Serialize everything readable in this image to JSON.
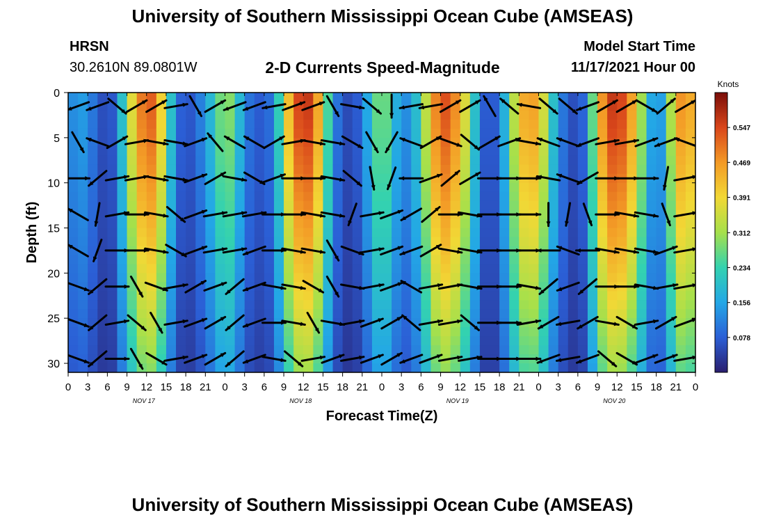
{
  "header": {
    "title": "University of Southern Mississippi Ocean Cube (AMSEAS)",
    "station": "HRSN",
    "coords": "30.2610N  89.0801W",
    "subtitle": "2-D Currents Speed-Magnitude",
    "model_label": "Model Start Time",
    "model_time": "11/17/2021 Hour 00"
  },
  "footer": {
    "title": "University of Southern Mississippi Ocean Cube (AMSEAS)"
  },
  "colors": {
    "colormap": [
      "#2a1e6e",
      "#2b5fd6",
      "#23a7e6",
      "#33d2b0",
      "#a6e04b",
      "#f2d835",
      "#f39a26",
      "#d9461b",
      "#7a0d08"
    ]
  },
  "chart_data": {
    "type": "heatmap",
    "xlabel": "Forecast Time(Z)",
    "ylabel": "Depth (ft)",
    "xlim": [
      0,
      96
    ],
    "ylim": [
      31,
      0
    ],
    "x_ticks": [
      0,
      3,
      6,
      9,
      12,
      15,
      18,
      21,
      24,
      27,
      30,
      33,
      36,
      39,
      42,
      45,
      48,
      51,
      54,
      57,
      60,
      63,
      66,
      69,
      72,
      75,
      78,
      81,
      84,
      87,
      90,
      93,
      96
    ],
    "x_tick_labels": [
      "0",
      "3",
      "6",
      "9",
      "12",
      "15",
      "18",
      "21",
      "0",
      "3",
      "6",
      "9",
      "12",
      "15",
      "18",
      "21",
      "0",
      "3",
      "6",
      "9",
      "12",
      "15",
      "18",
      "21",
      "0",
      "3",
      "6",
      "9",
      "12",
      "15",
      "18",
      "21",
      "0"
    ],
    "day_labels": [
      {
        "x": 12,
        "label": "NOV 17"
      },
      {
        "x": 36,
        "label": "NOV 18"
      },
      {
        "x": 60,
        "label": "NOV 19"
      },
      {
        "x": 84,
        "label": "NOV 20"
      }
    ],
    "y_ticks": [
      0,
      5,
      10,
      15,
      20,
      25,
      30
    ],
    "colorbar": {
      "unit": "Knots",
      "min": 0.0,
      "max": 0.625,
      "tick_values": [
        0.547,
        0.469,
        0.391,
        0.312,
        0.234,
        0.156,
        0.078
      ],
      "tick_labels": [
        "0.547",
        "0.469",
        "0.391",
        "0.312",
        "0.234",
        "0.156",
        "0.078"
      ]
    },
    "speed_profile_by_hour": [
      {
        "x": 0,
        "v": 0.1
      },
      {
        "x": 1.5,
        "v": 0.16
      },
      {
        "x": 3,
        "v": 0.13
      },
      {
        "x": 4.5,
        "v": 0.08
      },
      {
        "x": 6,
        "v": 0.04
      },
      {
        "x": 7.5,
        "v": 0.1
      },
      {
        "x": 9,
        "v": 0.3
      },
      {
        "x": 10.5,
        "v": 0.45
      },
      {
        "x": 12,
        "v": 0.55
      },
      {
        "x": 13.5,
        "v": 0.5
      },
      {
        "x": 15,
        "v": 0.3
      },
      {
        "x": 16.5,
        "v": 0.1
      },
      {
        "x": 18,
        "v": 0.06
      },
      {
        "x": 19.5,
        "v": 0.08
      },
      {
        "x": 21,
        "v": 0.15
      },
      {
        "x": 22.5,
        "v": 0.22
      },
      {
        "x": 24,
        "v": 0.33
      },
      {
        "x": 25.5,
        "v": 0.25
      },
      {
        "x": 27,
        "v": 0.12
      },
      {
        "x": 28.5,
        "v": 0.08
      },
      {
        "x": 30,
        "v": 0.07
      },
      {
        "x": 31.5,
        "v": 0.12
      },
      {
        "x": 33,
        "v": 0.33
      },
      {
        "x": 34.5,
        "v": 0.52
      },
      {
        "x": 36,
        "v": 0.58
      },
      {
        "x": 37.5,
        "v": 0.55
      },
      {
        "x": 39,
        "v": 0.36
      },
      {
        "x": 40.5,
        "v": 0.14
      },
      {
        "x": 42,
        "v": 0.06
      },
      {
        "x": 43.5,
        "v": 0.05
      },
      {
        "x": 45,
        "v": 0.1
      },
      {
        "x": 46.5,
        "v": 0.22
      },
      {
        "x": 48,
        "v": 0.32
      },
      {
        "x": 49.5,
        "v": 0.22
      },
      {
        "x": 51,
        "v": 0.12
      },
      {
        "x": 52.5,
        "v": 0.14
      },
      {
        "x": 54,
        "v": 0.25
      },
      {
        "x": 55.5,
        "v": 0.43
      },
      {
        "x": 57,
        "v": 0.55
      },
      {
        "x": 58.5,
        "v": 0.53
      },
      {
        "x": 60,
        "v": 0.44
      },
      {
        "x": 61.5,
        "v": 0.3
      },
      {
        "x": 63,
        "v": 0.1
      },
      {
        "x": 64.5,
        "v": 0.05
      },
      {
        "x": 66,
        "v": 0.1
      },
      {
        "x": 67.5,
        "v": 0.25
      },
      {
        "x": 69,
        "v": 0.42
      },
      {
        "x": 70.5,
        "v": 0.48
      },
      {
        "x": 72,
        "v": 0.44
      },
      {
        "x": 73.5,
        "v": 0.28
      },
      {
        "x": 75,
        "v": 0.12
      },
      {
        "x": 76.5,
        "v": 0.09
      },
      {
        "x": 78,
        "v": 0.03
      },
      {
        "x": 79.5,
        "v": 0.14
      },
      {
        "x": 81,
        "v": 0.4
      },
      {
        "x": 82.5,
        "v": 0.55
      },
      {
        "x": 84,
        "v": 0.58
      },
      {
        "x": 85.5,
        "v": 0.52
      },
      {
        "x": 87,
        "v": 0.4
      },
      {
        "x": 88.5,
        "v": 0.22
      },
      {
        "x": 90,
        "v": 0.1
      },
      {
        "x": 91.5,
        "v": 0.2
      },
      {
        "x": 93,
        "v": 0.45
      },
      {
        "x": 94.5,
        "v": 0.5
      },
      {
        "x": 96,
        "v": 0.4
      }
    ],
    "vector_depths_ft": [
      0,
      4,
      8,
      12,
      16,
      20,
      24,
      28
    ],
    "vector_times_h": [
      1.5,
      4.5,
      7.5,
      10.5,
      13.5,
      16.5,
      19.5,
      22.5,
      25.5,
      28.5,
      31.5,
      34.5,
      37.5,
      40.5,
      43.5,
      46.5,
      49.5,
      52.5,
      55.5,
      58.5,
      61.5,
      64.5,
      67.5,
      70.5,
      73.5,
      76.5,
      79.5,
      82.5,
      85.5,
      88.5,
      91.5,
      94.5
    ],
    "vector_directions_deg": [
      [
        200,
        200,
        320,
        30,
        30,
        10,
        300,
        30,
        200,
        200,
        190,
        20,
        20,
        300,
        350,
        320,
        270,
        190,
        190,
        30,
        30,
        120,
        140,
        170,
        320,
        320,
        200,
        30,
        30,
        330,
        40,
        30
      ],
      [
        300,
        160,
        30,
        10,
        350,
        350,
        20,
        130,
        150,
        150,
        30,
        10,
        350,
        350,
        330,
        300,
        240,
        160,
        30,
        340,
        320,
        30,
        20,
        350,
        160,
        160,
        200,
        10,
        10,
        20,
        200,
        160
      ],
      [
        0,
        220,
        10,
        10,
        350,
        350,
        20,
        30,
        350,
        330,
        20,
        0,
        0,
        350,
        320,
        280,
        250,
        180,
        20,
        40,
        30,
        0,
        0,
        0,
        170,
        160,
        210,
        0,
        0,
        0,
        260,
        10
      ],
      [
        150,
        260,
        10,
        0,
        350,
        320,
        20,
        10,
        10,
        10,
        0,
        0,
        350,
        350,
        250,
        10,
        20,
        210,
        40,
        0,
        350,
        0,
        0,
        0,
        270,
        260,
        290,
        0,
        350,
        350,
        290,
        10
      ],
      [
        150,
        250,
        0,
        0,
        350,
        330,
        20,
        10,
        10,
        200,
        0,
        350,
        350,
        300,
        340,
        10,
        20,
        200,
        30,
        350,
        350,
        0,
        0,
        0,
        180,
        160,
        180,
        350,
        350,
        350,
        20,
        10
      ],
      [
        340,
        220,
        0,
        300,
        340,
        10,
        30,
        20,
        220,
        200,
        350,
        350,
        330,
        300,
        350,
        10,
        20,
        150,
        10,
        10,
        350,
        0,
        0,
        350,
        220,
        200,
        220,
        0,
        0,
        350,
        10,
        10
      ],
      [
        340,
        220,
        10,
        320,
        300,
        10,
        20,
        30,
        220,
        200,
        0,
        350,
        300,
        350,
        10,
        20,
        30,
        140,
        10,
        10,
        320,
        0,
        0,
        10,
        210,
        190,
        210,
        350,
        330,
        10,
        30,
        20
      ],
      [
        340,
        220,
        0,
        300,
        330,
        10,
        20,
        30,
        220,
        200,
        350,
        320,
        10,
        20,
        10,
        20,
        30,
        200,
        20,
        10,
        10,
        0,
        0,
        0,
        200,
        190,
        200,
        320,
        330,
        20,
        20,
        10
      ]
    ]
  }
}
